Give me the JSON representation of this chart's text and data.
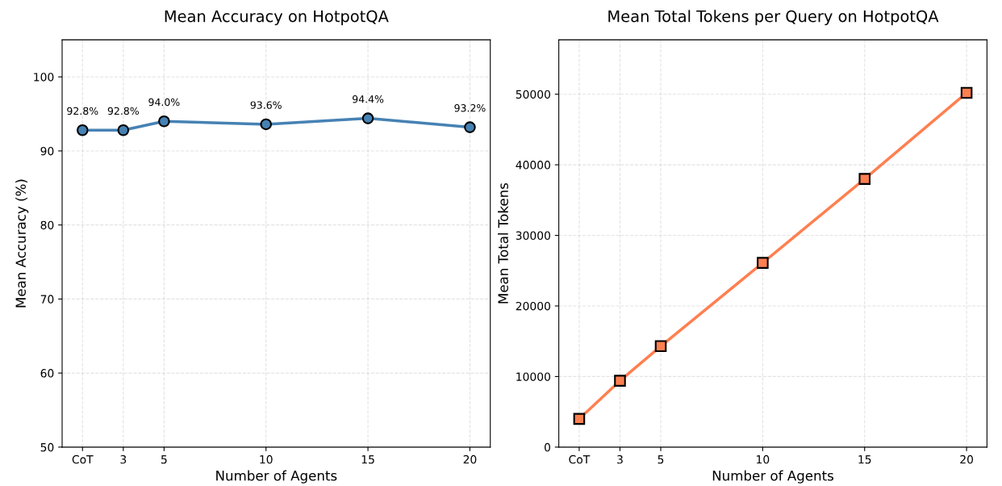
{
  "chart_data": [
    {
      "type": "line",
      "title": "Mean Accuracy on HotpotQA",
      "xlabel": "Number of Agents",
      "ylabel": "Mean Accuracy (%)",
      "x": [
        1,
        3,
        5,
        10,
        15,
        20
      ],
      "series": [
        {
          "color": "#4682b4",
          "values": [
            92.8,
            92.8,
            94.0,
            93.6,
            94.4,
            93.2
          ],
          "value_labels": [
            "92.8%",
            "92.8%",
            "94.0%",
            "93.6%",
            "94.4%",
            "93.2%"
          ]
        }
      ],
      "xlim": [
        0,
        21
      ],
      "xticks": [
        {
          "value": 1,
          "label": "CoT"
        },
        3,
        5,
        10,
        15,
        20
      ],
      "ylim": [
        50,
        105
      ],
      "yticks": [
        50,
        60,
        70,
        80,
        90,
        100
      ],
      "grid": true,
      "marker": "circle",
      "line_style": "solid"
    },
    {
      "type": "line",
      "title": "Mean Total Tokens per Query on HotpotQA",
      "xlabel": "Number of Agents",
      "ylabel": "Mean Total Tokens",
      "x": [
        1,
        3,
        5,
        10,
        15,
        20
      ],
      "series": [
        {
          "color": "#ff7f50",
          "values": [
            4000,
            9400,
            14300,
            26100,
            38000,
            50200
          ]
        }
      ],
      "xlim": [
        0,
        21
      ],
      "xticks": [
        {
          "value": 1,
          "label": "CoT"
        },
        3,
        5,
        10,
        15,
        20
      ],
      "ylim": [
        0,
        57700
      ],
      "yticks": [
        0,
        10000,
        20000,
        30000,
        40000,
        50000
      ],
      "grid": true,
      "marker": "square",
      "line_style": "solid"
    }
  ]
}
